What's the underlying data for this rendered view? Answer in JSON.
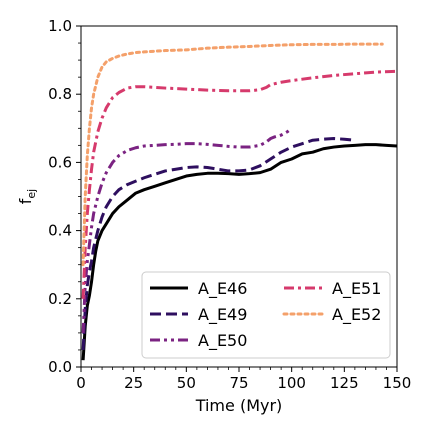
{
  "chart_data": {
    "type": "line",
    "title": "",
    "xlabel": "Time (Myr)",
    "ylabel_base": "f",
    "ylabel_sub": "ej",
    "xlim": [
      0,
      150
    ],
    "ylim": [
      0,
      1.0
    ],
    "xticks": [
      0,
      25,
      50,
      75,
      100,
      125,
      150
    ],
    "yticks": [
      0.0,
      0.2,
      0.4,
      0.6,
      0.8,
      1.0
    ],
    "ytick_labels": [
      "0.0",
      "0.2",
      "0.4",
      "0.6",
      "0.8",
      "1.0"
    ],
    "grid": false,
    "legend": {
      "placement": "lower-right",
      "columns": 2
    },
    "series": [
      {
        "name": "A_E46",
        "color": "#000000",
        "dash": "solid",
        "x": [
          1,
          2,
          3,
          4,
          5,
          6,
          7,
          8,
          10,
          12,
          15,
          18,
          22,
          26,
          30,
          35,
          40,
          45,
          50,
          55,
          60,
          65,
          70,
          75,
          80,
          85,
          90,
          95,
          100,
          105,
          110,
          115,
          120,
          125,
          130,
          135,
          140,
          145,
          150
        ],
        "y": [
          0.02,
          0.12,
          0.18,
          0.21,
          0.25,
          0.3,
          0.34,
          0.37,
          0.4,
          0.42,
          0.45,
          0.47,
          0.49,
          0.51,
          0.52,
          0.53,
          0.54,
          0.55,
          0.56,
          0.565,
          0.568,
          0.568,
          0.567,
          0.565,
          0.567,
          0.57,
          0.58,
          0.6,
          0.61,
          0.625,
          0.63,
          0.64,
          0.645,
          0.648,
          0.65,
          0.652,
          0.652,
          0.65,
          0.648
        ]
      },
      {
        "name": "A_E49",
        "color": "#2e0f5f",
        "dash": "dashed",
        "x": [
          1,
          2,
          3,
          4,
          5,
          6,
          8,
          10,
          12,
          15,
          18,
          22,
          26,
          30,
          35,
          40,
          45,
          50,
          55,
          60,
          65,
          70,
          75,
          80,
          85,
          90,
          95,
          100,
          105,
          110,
          115,
          120,
          125,
          130
        ],
        "y": [
          0.05,
          0.17,
          0.24,
          0.28,
          0.31,
          0.35,
          0.4,
          0.44,
          0.47,
          0.5,
          0.52,
          0.535,
          0.545,
          0.555,
          0.565,
          0.575,
          0.58,
          0.585,
          0.587,
          0.585,
          0.58,
          0.575,
          0.575,
          0.578,
          0.59,
          0.61,
          0.63,
          0.645,
          0.655,
          0.665,
          0.668,
          0.67,
          0.668,
          0.665
        ]
      },
      {
        "name": "A_E50",
        "color": "#7b2382",
        "dash": "dashdotdot",
        "x": [
          1,
          2,
          3,
          4,
          5,
          6,
          8,
          10,
          12,
          15,
          18,
          22,
          26,
          30,
          35,
          40,
          45,
          50,
          55,
          60,
          65,
          70,
          75,
          80,
          85,
          88,
          90,
          92,
          95,
          98,
          100
        ],
        "y": [
          0.1,
          0.24,
          0.31,
          0.36,
          0.41,
          0.45,
          0.5,
          0.54,
          0.57,
          0.6,
          0.62,
          0.635,
          0.643,
          0.648,
          0.65,
          0.652,
          0.653,
          0.655,
          0.655,
          0.653,
          0.65,
          0.647,
          0.645,
          0.645,
          0.65,
          0.66,
          0.67,
          0.675,
          0.68,
          0.69,
          0.7
        ]
      },
      {
        "name": "A_E51",
        "color": "#d63a6c",
        "dash": "dashdot",
        "x": [
          1,
          2,
          3,
          4,
          5,
          6,
          8,
          10,
          12,
          15,
          18,
          22,
          26,
          30,
          35,
          40,
          50,
          60,
          70,
          80,
          85,
          88,
          90,
          95,
          100,
          110,
          120,
          130,
          140,
          150
        ],
        "y": [
          0.2,
          0.35,
          0.45,
          0.52,
          0.58,
          0.63,
          0.69,
          0.73,
          0.76,
          0.79,
          0.805,
          0.818,
          0.822,
          0.822,
          0.82,
          0.818,
          0.815,
          0.812,
          0.81,
          0.81,
          0.813,
          0.82,
          0.828,
          0.835,
          0.84,
          0.848,
          0.855,
          0.86,
          0.865,
          0.867
        ]
      },
      {
        "name": "A_E52",
        "color": "#f4a06a",
        "dash": "dotted",
        "x": [
          1,
          2,
          3,
          4,
          5,
          6,
          8,
          10,
          12,
          15,
          18,
          22,
          26,
          30,
          35,
          40,
          50,
          60,
          70,
          80,
          90,
          100,
          110,
          120,
          130,
          140,
          143
        ],
        "y": [
          0.3,
          0.5,
          0.62,
          0.7,
          0.76,
          0.8,
          0.85,
          0.88,
          0.895,
          0.905,
          0.912,
          0.918,
          0.922,
          0.924,
          0.926,
          0.928,
          0.93,
          0.935,
          0.938,
          0.94,
          0.943,
          0.945,
          0.946,
          0.946,
          0.947,
          0.947,
          0.947
        ]
      }
    ]
  }
}
